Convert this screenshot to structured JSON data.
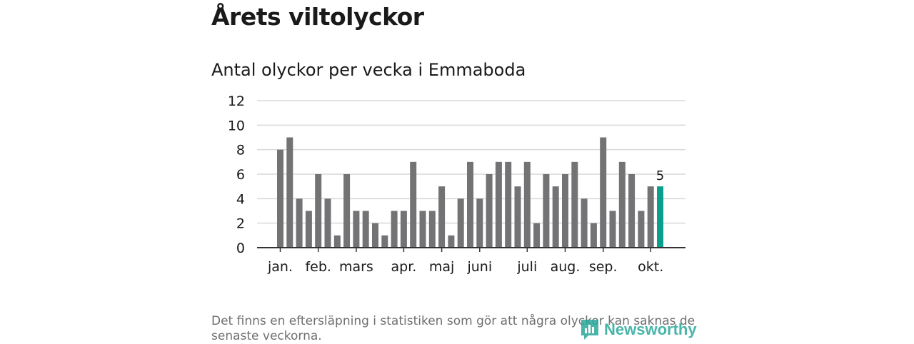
{
  "page": {
    "title": "Årets viltolyckor",
    "subtitle": "Antal olyckor per vecka i Emmaboda",
    "footnote": "Det finns en eftersläpning i statistiken som gör att några olyckor kan saknas de senaste veckorna.",
    "logo_text": "Newsworthy"
  },
  "colors": {
    "bar": "#737375",
    "highlight": "#0a9e8e",
    "grid": "#d9d9d9",
    "axis": "#333333",
    "text": "#1a1a1a"
  },
  "chart_data": {
    "type": "bar",
    "title": "Antal olyckor per vecka i Emmaboda",
    "xlabel": "",
    "ylabel": "",
    "ylim": [
      0,
      12
    ],
    "yticks": [
      "0",
      "2",
      "4",
      "6",
      "8",
      "10",
      "12"
    ],
    "grid": true,
    "values": [
      8,
      9,
      4,
      3,
      6,
      4,
      1,
      6,
      3,
      3,
      2,
      1,
      3,
      3,
      7,
      3,
      3,
      5,
      1,
      4,
      7,
      4,
      6,
      7,
      7,
      5,
      7,
      2,
      6,
      5,
      6,
      7,
      4,
      2,
      9,
      3,
      7,
      6,
      3,
      5,
      5
    ],
    "highlight_index": 40,
    "highlight_label": "5",
    "month_labels": [
      {
        "label": "jan.",
        "week_index": 0
      },
      {
        "label": "feb.",
        "week_index": 4
      },
      {
        "label": "mars",
        "week_index": 8
      },
      {
        "label": "apr.",
        "week_index": 13
      },
      {
        "label": "maj",
        "week_index": 17
      },
      {
        "label": "juni",
        "week_index": 21
      },
      {
        "label": "juli",
        "week_index": 26
      },
      {
        "label": "aug.",
        "week_index": 30
      },
      {
        "label": "sep.",
        "week_index": 34
      },
      {
        "label": "okt.",
        "week_index": 39
      }
    ]
  }
}
